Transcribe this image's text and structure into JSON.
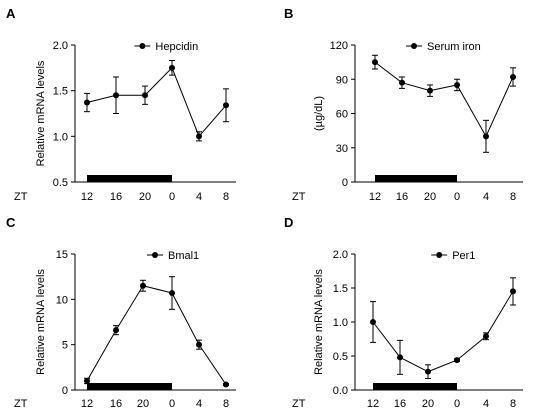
{
  "chart_data": [
    {
      "panel": "A",
      "type": "line",
      "legend": "Hepcidin",
      "legend_position": "top-right",
      "ylabel": "Relative mRNA levels",
      "xlabel": "ZT",
      "x": [
        "12",
        "16",
        "20",
        "0",
        "4",
        "8"
      ],
      "values": [
        1.37,
        1.45,
        1.45,
        1.75,
        1.0,
        1.34
      ],
      "errors": [
        0.1,
        0.2,
        0.1,
        0.08,
        0.05,
        0.18
      ],
      "ylim": [
        0.5,
        2.0
      ],
      "yticks": [
        "0.5",
        "1.0",
        "1.5",
        "2.0"
      ],
      "dark_phase": [
        "12",
        "0"
      ],
      "grid": false
    },
    {
      "panel": "B",
      "type": "line",
      "legend": "Serum iron",
      "legend_position": "top-right",
      "ylabel": "(µg/dL)",
      "xlabel": "ZT",
      "x": [
        "12",
        "16",
        "20",
        "0",
        "4",
        "8"
      ],
      "values": [
        105,
        87,
        80,
        85,
        40,
        92
      ],
      "errors": [
        6,
        5,
        5,
        5,
        14,
        8
      ],
      "ylim": [
        0,
        120
      ],
      "yticks": [
        "0",
        "30",
        "60",
        "90",
        "120"
      ],
      "dark_phase": [
        "12",
        "0"
      ],
      "grid": false
    },
    {
      "panel": "C",
      "type": "line",
      "legend": "Bmal1",
      "legend_position": "top-right",
      "ylabel": "Relative mRNA levels",
      "xlabel": "ZT",
      "x": [
        "12",
        "16",
        "20",
        "0",
        "4",
        "8"
      ],
      "values": [
        1.0,
        6.6,
        11.5,
        10.7,
        5.0,
        0.6
      ],
      "errors": [
        0.3,
        0.5,
        0.6,
        1.8,
        0.5,
        0.1
      ],
      "ylim": [
        0,
        15
      ],
      "yticks": [
        "0",
        "5",
        "10",
        "15"
      ],
      "dark_phase": [
        "12",
        "0"
      ],
      "grid": false
    },
    {
      "panel": "D",
      "type": "line",
      "legend": "Per1",
      "legend_position": "top-right",
      "ylabel": "Relative mRNA levels",
      "xlabel": "ZT",
      "x": [
        "12",
        "16",
        "20",
        "0",
        "4",
        "8"
      ],
      "values": [
        1.0,
        0.48,
        0.27,
        0.44,
        0.79,
        1.45
      ],
      "errors": [
        0.3,
        0.25,
        0.1,
        0.02,
        0.05,
        0.2
      ],
      "ylim": [
        0,
        2.0
      ],
      "yticks": [
        "0.0",
        "0.5",
        "1.0",
        "1.5",
        "2.0"
      ],
      "dark_phase": [
        "12",
        "0"
      ],
      "grid": false
    }
  ]
}
